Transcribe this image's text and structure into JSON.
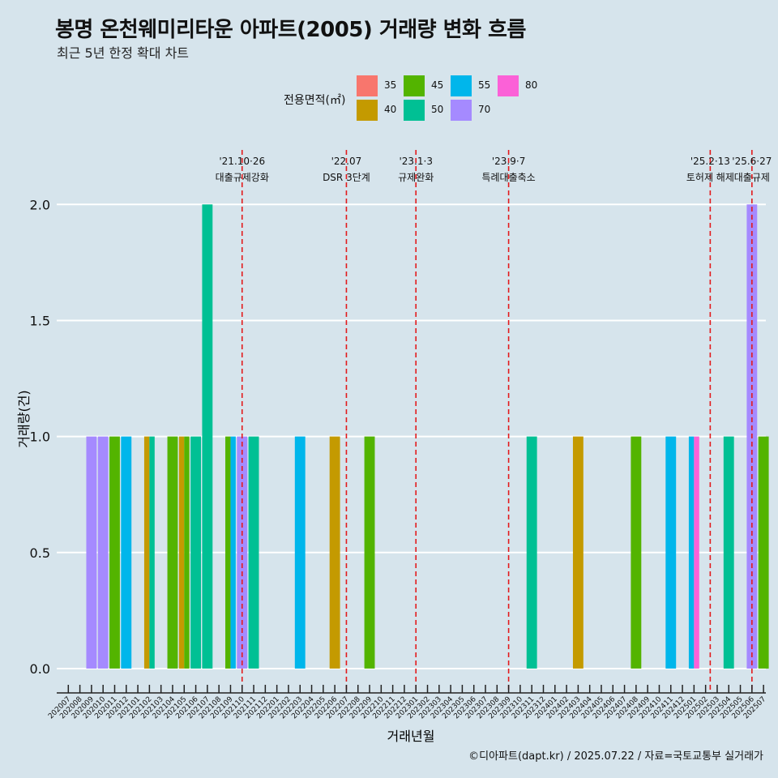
{
  "title": "봉명 온천웨미리타운 아파트(2005) 거래량 변화 흐름",
  "subtitle": "최근 5년 한정 확대 차트",
  "caption": "©디아파트(dapt.kr) / 2025.07.22 / 자료=국토교통부 실거래가",
  "legend": {
    "title": "전용면적(㎡)",
    "items": [
      {
        "label": "35",
        "color": "#F8766D"
      },
      {
        "label": "40",
        "color": "#C49A00"
      },
      {
        "label": "45",
        "color": "#53B400"
      },
      {
        "label": "50",
        "color": "#00C094"
      },
      {
        "label": "55",
        "color": "#00B6EB"
      },
      {
        "label": "70",
        "color": "#A58AFF"
      },
      {
        "label": "80",
        "color": "#FB61D7"
      }
    ]
  },
  "chart_data": {
    "type": "bar",
    "xlabel": "거래년월",
    "ylabel": "거래량(건)",
    "ylim": [
      -0.07,
      2.2
    ],
    "yticks": [
      "0.0",
      "0.5",
      "1.0",
      "1.5",
      "2.0"
    ],
    "grid": "horizontal",
    "categories": [
      "202007",
      "202008",
      "202009",
      "202010",
      "202011",
      "202012",
      "202101",
      "202102",
      "202103",
      "202104",
      "202105",
      "202106",
      "202107",
      "202108",
      "202109",
      "202110",
      "202111",
      "202112",
      "202201",
      "202202",
      "202203",
      "202204",
      "202205",
      "202206",
      "202207",
      "202208",
      "202209",
      "202210",
      "202211",
      "202212",
      "202301",
      "202302",
      "202303",
      "202304",
      "202305",
      "202306",
      "202307",
      "202308",
      "202309",
      "202310",
      "202311",
      "202312",
      "202401",
      "202402",
      "202403",
      "202404",
      "202405",
      "202406",
      "202407",
      "202408",
      "202409",
      "202410",
      "202411",
      "202412",
      "202501",
      "202502",
      "202503",
      "202504",
      "202505",
      "202506",
      "202507"
    ],
    "bars": [
      {
        "month": "202009",
        "area": "70",
        "value": 1
      },
      {
        "month": "202010",
        "area": "70",
        "value": 1
      },
      {
        "month": "202011",
        "area": "45",
        "value": 1
      },
      {
        "month": "202012",
        "area": "55",
        "value": 1
      },
      {
        "month": "202102",
        "area": "40",
        "value": 1
      },
      {
        "month": "202102",
        "area": "50",
        "value": 1
      },
      {
        "month": "202104",
        "area": "45",
        "value": 1
      },
      {
        "month": "202105",
        "area": "40",
        "value": 1
      },
      {
        "month": "202105",
        "area": "45",
        "value": 1
      },
      {
        "month": "202106",
        "area": "50",
        "value": 1
      },
      {
        "month": "202107",
        "area": "50",
        "value": 2
      },
      {
        "month": "202109",
        "area": "45",
        "value": 1
      },
      {
        "month": "202109",
        "area": "55",
        "value": 1
      },
      {
        "month": "202110",
        "area": "70",
        "value": 1
      },
      {
        "month": "202111",
        "area": "50",
        "value": 1
      },
      {
        "month": "202203",
        "area": "55",
        "value": 1
      },
      {
        "month": "202206",
        "area": "40",
        "value": 1
      },
      {
        "month": "202209",
        "area": "45",
        "value": 1
      },
      {
        "month": "202311",
        "area": "50",
        "value": 1
      },
      {
        "month": "202403",
        "area": "40",
        "value": 1
      },
      {
        "month": "202408",
        "area": "45",
        "value": 1
      },
      {
        "month": "202411",
        "area": "55",
        "value": 1
      },
      {
        "month": "202501",
        "area": "55",
        "value": 1
      },
      {
        "month": "202501",
        "area": "80",
        "value": 1
      },
      {
        "month": "202504",
        "area": "50",
        "value": 1
      },
      {
        "month": "202506",
        "area": "70",
        "value": 2
      },
      {
        "month": "202507",
        "area": "45",
        "value": 1
      }
    ],
    "annotations": [
      {
        "month": "202110",
        "offset": 0.0,
        "date": "'21.10·26",
        "label": "대출규제강화"
      },
      {
        "month": "202207",
        "offset": 0.0,
        "date": "'22.07",
        "label": "DSR 3단계"
      },
      {
        "month": "202301",
        "offset": 0.0,
        "date": "'23.1·3",
        "label": "규제완화"
      },
      {
        "month": "202309",
        "offset": 0.0,
        "date": "'23.9·7",
        "label": "특례대출축소"
      },
      {
        "month": "202502",
        "offset": 0.4,
        "date": "'25.2·13",
        "label": "토허제 해제"
      },
      {
        "month": "202506",
        "offset": 0.0,
        "date": "'25.6·27",
        "label": "대출규제"
      }
    ]
  }
}
